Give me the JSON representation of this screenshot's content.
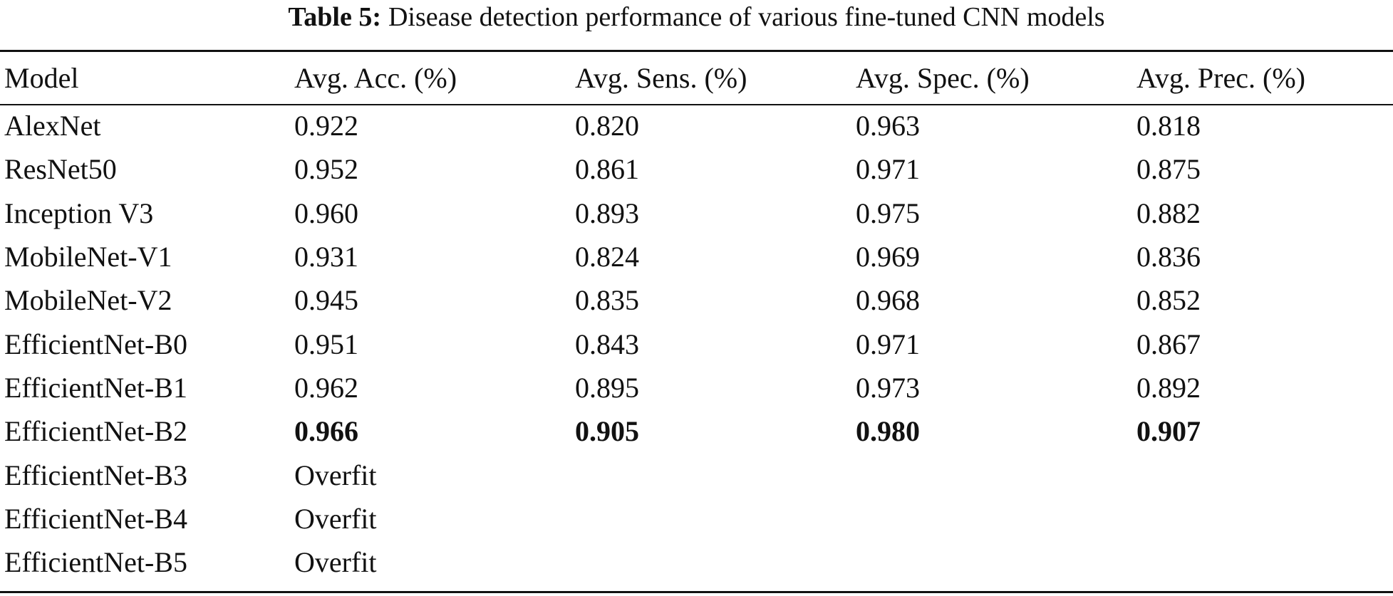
{
  "caption": {
    "label": "Table 5:",
    "text": "Disease detection performance of various fine-tuned CNN models"
  },
  "table": {
    "headers": [
      "Model",
      "Avg. Acc. (%)",
      "Avg. Sens. (%)",
      "Avg. Spec. (%)",
      "Avg. Prec. (%)"
    ],
    "rows": [
      {
        "model": "AlexNet",
        "acc": "0.922",
        "sens": "0.820",
        "spec": "0.963",
        "prec": "0.818"
      },
      {
        "model": "ResNet50",
        "acc": "0.952",
        "sens": "0.861",
        "spec": "0.971",
        "prec": "0.875"
      },
      {
        "model": "Inception V3",
        "acc": "0.960",
        "sens": "0.893",
        "spec": "0.975",
        "prec": "0.882"
      },
      {
        "model": "MobileNet-V1",
        "acc": "0.931",
        "sens": "0.824",
        "spec": "0.969",
        "prec": "0.836"
      },
      {
        "model": "MobileNet-V2",
        "acc": "0.945",
        "sens": "0.835",
        "spec": "0.968",
        "prec": "0.852"
      },
      {
        "model": "EfficientNet-B0",
        "acc": "0.951",
        "sens": "0.843",
        "spec": "0.971",
        "prec": "0.867"
      },
      {
        "model": "EfficientNet-B1",
        "acc": "0.962",
        "sens": "0.895",
        "spec": "0.973",
        "prec": "0.892"
      },
      {
        "model": "EfficientNet-B2",
        "acc": "0.966",
        "sens": "0.905",
        "spec": "0.980",
        "prec": "0.907"
      },
      {
        "model": "EfficientNet-B3",
        "acc": "Overfit",
        "sens": "",
        "spec": "",
        "prec": ""
      },
      {
        "model": "EfficientNet-B4",
        "acc": "Overfit",
        "sens": "",
        "spec": "",
        "prec": ""
      },
      {
        "model": "EfficientNet-B5",
        "acc": "Overfit",
        "sens": "",
        "spec": "",
        "prec": ""
      }
    ]
  }
}
